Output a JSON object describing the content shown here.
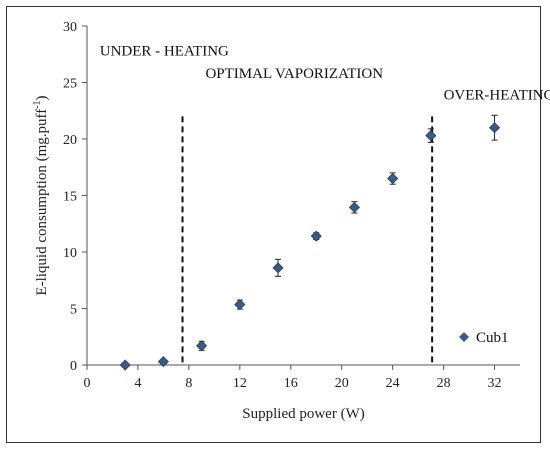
{
  "chart_data": {
    "type": "scatter",
    "x_label": "Supplied power (W)",
    "y_label_main": "E-liquid consumption (mg.puff",
    "y_label_sup": "-1",
    "y_label_end": ")",
    "xlim": [
      0,
      34
    ],
    "ylim": [
      0,
      30
    ],
    "x_ticks": [
      0,
      4,
      8,
      12,
      16,
      20,
      24,
      28,
      32
    ],
    "y_ticks": [
      0,
      5,
      10,
      15,
      20,
      25,
      30
    ],
    "grid": false,
    "legend_position": "bottom-right",
    "series": [
      {
        "name": "Cub1",
        "color": "#3d5a80",
        "marker": "diamond",
        "points": [
          {
            "x": 3,
            "y": 0.0,
            "err": 0.0
          },
          {
            "x": 6,
            "y": 0.3,
            "err": 0.2
          },
          {
            "x": 9,
            "y": 1.7,
            "err": 0.4
          },
          {
            "x": 12,
            "y": 5.35,
            "err": 0.4
          },
          {
            "x": 15,
            "y": 8.6,
            "err": 0.75
          },
          {
            "x": 18,
            "y": 11.4,
            "err": 0.3
          },
          {
            "x": 21,
            "y": 13.95,
            "err": 0.5
          },
          {
            "x": 24,
            "y": 16.5,
            "err": 0.5
          },
          {
            "x": 27,
            "y": 20.3,
            "err": 0.6
          },
          {
            "x": 32,
            "y": 21.0,
            "err": 1.1
          }
        ]
      }
    ],
    "vertical_lines": [
      {
        "x": 7.5,
        "y_top": 22,
        "style": "dashed"
      },
      {
        "x": 27.1,
        "y_top": 22,
        "style": "dashed"
      }
    ],
    "annotations": [
      {
        "text": "UNDER - HEATING",
        "x": 1.0,
        "y": 27.4
      },
      {
        "text": "OPTIMAL VAPORIZATION",
        "x": 9.3,
        "y": 25.4
      },
      {
        "text": "OVER-HEATING",
        "x": 28.0,
        "y": 23.5
      }
    ]
  }
}
